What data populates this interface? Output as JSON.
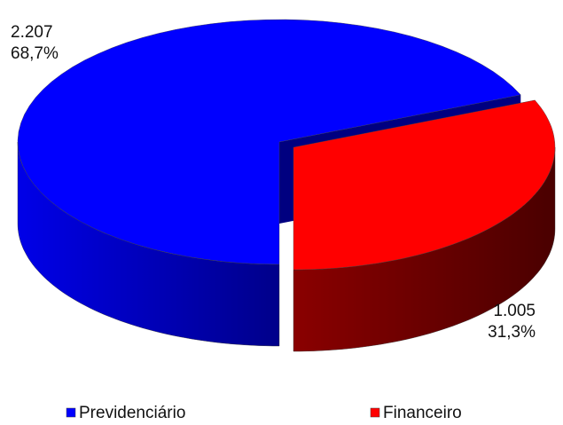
{
  "chart_data": {
    "type": "pie3d",
    "categories": [
      "Previdenciário",
      "Financeiro"
    ],
    "values": [
      2207,
      1005
    ],
    "value_labels": [
      "2.207",
      "1.005"
    ],
    "percents": [
      68.7,
      31.3
    ],
    "percent_labels": [
      "68,7%",
      "31,3%"
    ],
    "colors": [
      "#0000ff",
      "#ff0000"
    ],
    "legend": "bottom"
  }
}
